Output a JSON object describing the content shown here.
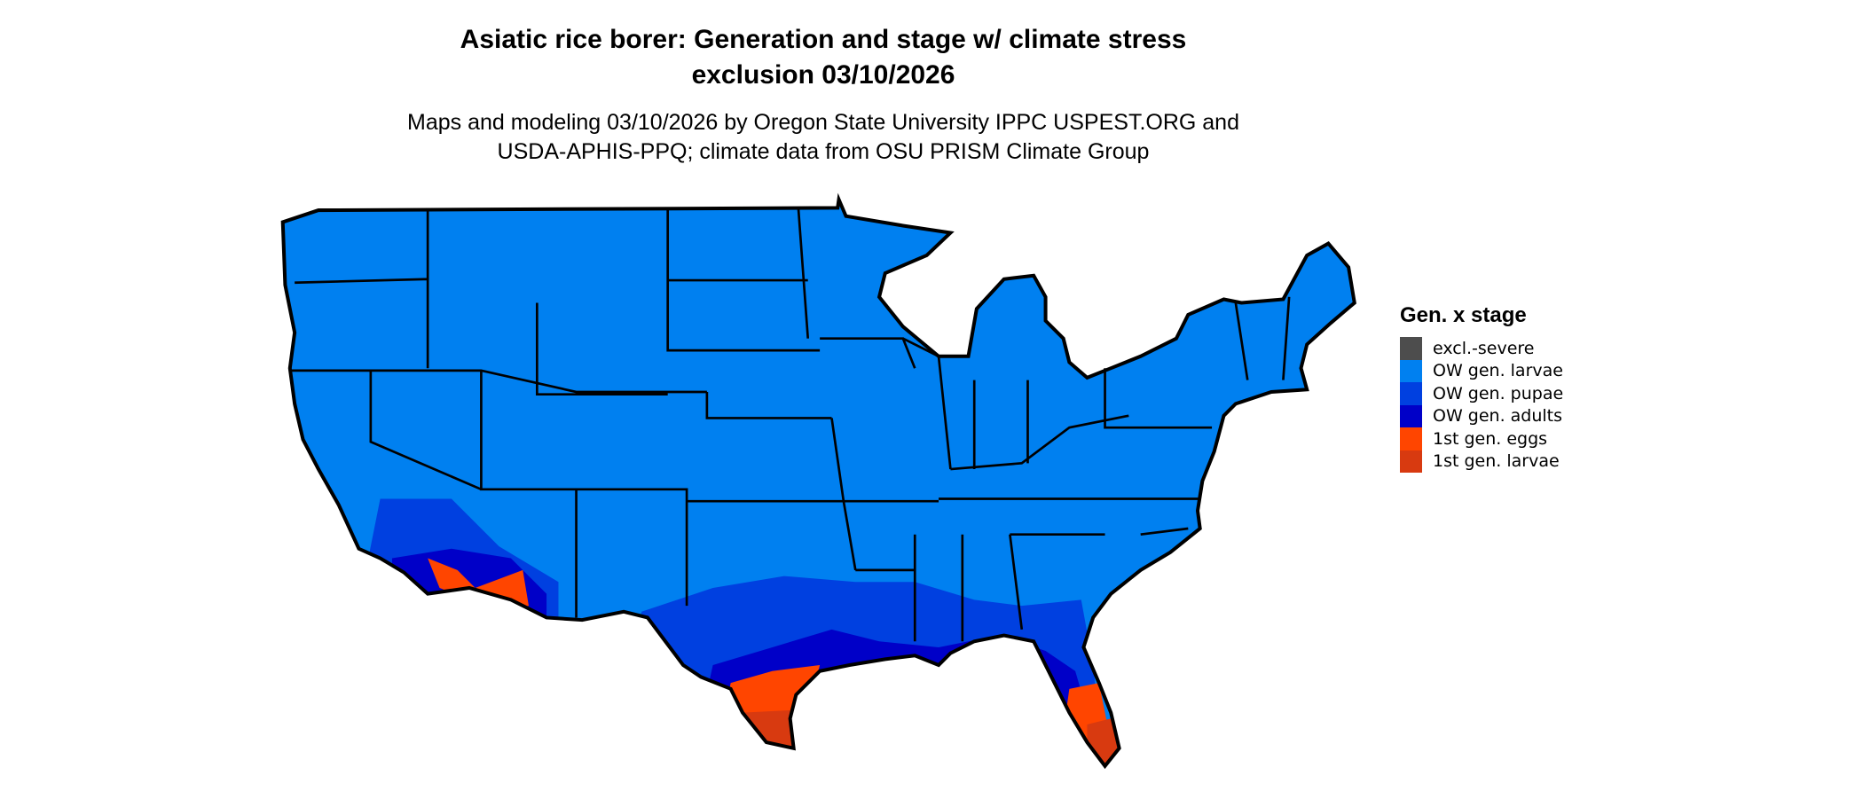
{
  "title_line1": "Asiatic rice borer: Generation and stage w/ climate stress",
  "title_line2": "exclusion 03/10/2026",
  "subtitle_line1": "Maps and modeling 03/10/2026 by Oregon State University IPPC USPEST.ORG and",
  "subtitle_line2": "USDA-APHIS-PPQ; climate data from OSU PRISM Climate Group",
  "legend": {
    "title": "Gen. x stage",
    "items": [
      {
        "label": "excl.-severe",
        "color": "#4d4d4d"
      },
      {
        "label": "OW gen. larvae",
        "color": "#0080f0"
      },
      {
        "label": "OW gen. pupae",
        "color": "#0040e0"
      },
      {
        "label": "OW gen. adults",
        "color": "#0000c8"
      },
      {
        "label": "1st gen. eggs",
        "color": "#ff4500"
      },
      {
        "label": "1st gen. larvae",
        "color": "#d83a10"
      }
    ]
  }
}
